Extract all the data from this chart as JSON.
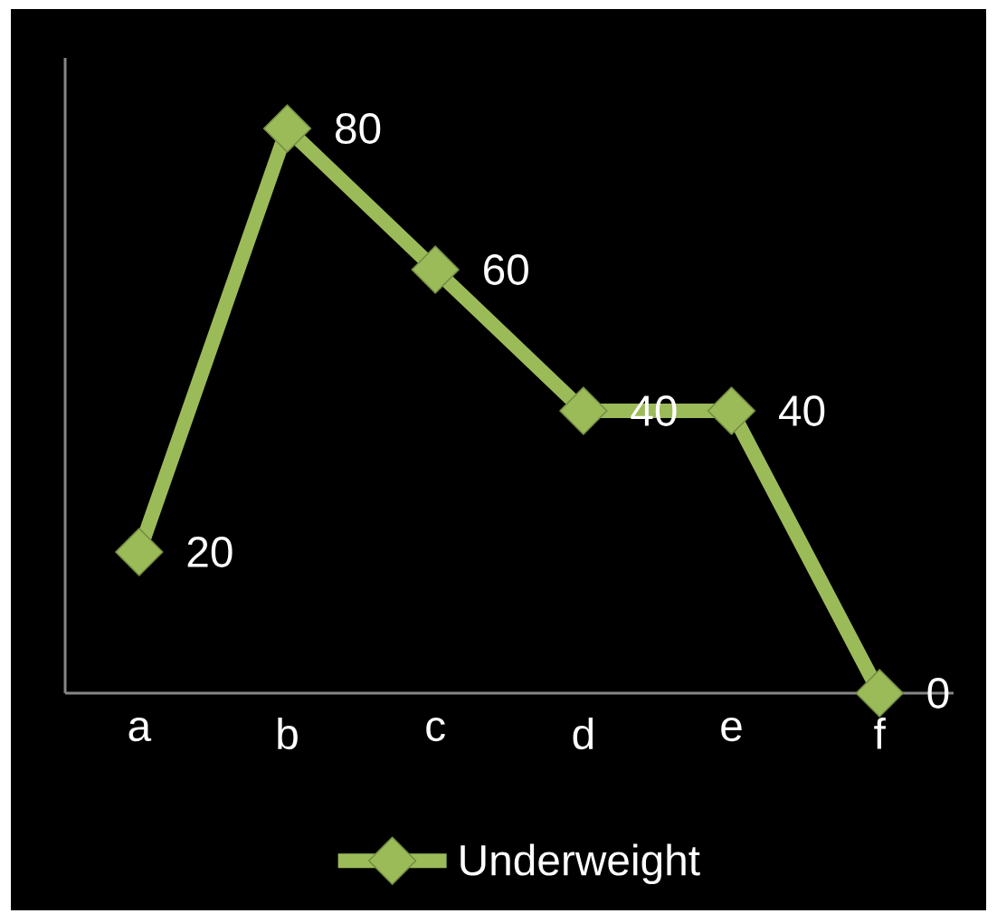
{
  "chart_data": {
    "type": "line",
    "categories": [
      "a",
      "b",
      "c",
      "d",
      "e",
      "f"
    ],
    "series": [
      {
        "name": "Underweight",
        "color": "#9bbb59",
        "values": [
          20,
          80,
          60,
          40,
          40,
          0
        ]
      }
    ],
    "ylim": [
      0,
      90
    ],
    "tick_labels": "x",
    "data_labels": true,
    "marker": "diamond",
    "line_style": "solid",
    "legend": "bottom"
  }
}
